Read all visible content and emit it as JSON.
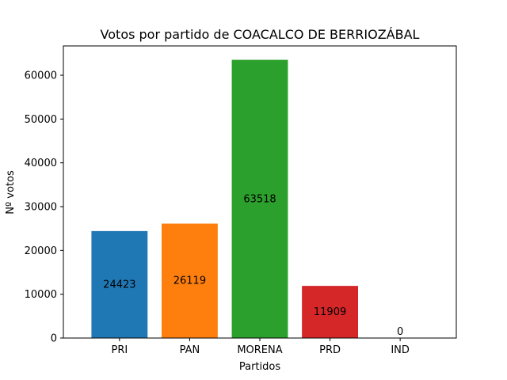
{
  "chart_data": {
    "type": "bar",
    "title": "Votos por partido de COACALCO DE BERRIOZÁBAL",
    "xlabel": "Partidos",
    "ylabel": "Nº votos",
    "categories": [
      "PRI",
      "PAN",
      "MORENA",
      "PRD",
      "IND"
    ],
    "values": [
      24423,
      26119,
      63518,
      11909,
      0
    ],
    "value_labels": [
      "24423",
      "26119",
      "63518",
      "11909",
      "0"
    ],
    "colors": [
      "#1f77b4",
      "#ff7f0e",
      "#2ca02c",
      "#d62728",
      "#9467bd"
    ],
    "ylim": [
      0,
      66694
    ],
    "yticks": [
      0,
      10000,
      20000,
      30000,
      40000,
      50000,
      60000
    ],
    "ytick_labels": [
      "0",
      "10000",
      "20000",
      "30000",
      "40000",
      "50000",
      "60000"
    ],
    "grid": false,
    "legend": "none"
  }
}
